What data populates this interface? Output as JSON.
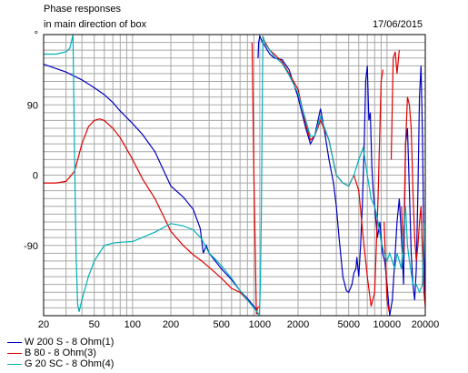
{
  "header": {
    "title_line1": "Phase responses",
    "title_line2": "in main direction of box",
    "date": "17/06/2015",
    "unit": "°"
  },
  "chart_data": {
    "type": "line",
    "x_scale": "log",
    "xlim": [
      20,
      20000
    ],
    "ylim": [
      -180,
      180
    ],
    "y_ticks": [
      {
        "value": 90,
        "label": "90"
      },
      {
        "value": 0,
        "label": "0"
      },
      {
        "value": -90,
        "label": "-90"
      }
    ],
    "x_ticks": [
      {
        "value": 20,
        "label": "20"
      },
      {
        "value": 50,
        "label": "50"
      },
      {
        "value": 100,
        "label": "100"
      },
      {
        "value": 200,
        "label": "200"
      },
      {
        "value": 500,
        "label": "500"
      },
      {
        "value": 1000,
        "label": "1000"
      },
      {
        "value": 2000,
        "label": "2000"
      },
      {
        "value": 5000,
        "label": "5000"
      },
      {
        "value": 10000,
        "label": "10000"
      },
      {
        "value": 20000,
        "label": "20000"
      }
    ],
    "grid": true,
    "legend_position": "bottom-left",
    "series": [
      {
        "name": "W 200 S - 8 Ohm(1)",
        "color": "#0000c0",
        "points": [
          [
            20,
            142
          ],
          [
            30,
            132
          ],
          [
            40,
            122
          ],
          [
            50,
            112
          ],
          [
            60,
            103
          ],
          [
            70,
            93
          ],
          [
            80,
            82
          ],
          [
            100,
            66
          ],
          [
            120,
            52
          ],
          [
            150,
            30
          ],
          [
            200,
            -14
          ],
          [
            250,
            -28
          ],
          [
            300,
            -44
          ],
          [
            340,
            -68
          ],
          [
            360,
            -100
          ],
          [
            380,
            -90
          ],
          [
            400,
            -100
          ],
          [
            500,
            -120
          ],
          [
            600,
            -134
          ],
          [
            700,
            -148
          ],
          [
            800,
            -158
          ],
          [
            900,
            -168
          ],
          [
            940,
            -172
          ],
          [
            960,
            -178
          ],
          [
            970,
            150
          ],
          [
            980,
            170
          ],
          [
            1000,
            178
          ],
          [
            1050,
            170
          ],
          [
            1100,
            165
          ],
          [
            1200,
            155
          ],
          [
            1300,
            150
          ],
          [
            1500,
            148
          ],
          [
            1700,
            135
          ],
          [
            2000,
            100
          ],
          [
            2300,
            60
          ],
          [
            2500,
            40
          ],
          [
            2700,
            50
          ],
          [
            3000,
            85
          ],
          [
            3200,
            60
          ],
          [
            3500,
            20
          ],
          [
            3800,
            -10
          ],
          [
            4000,
            -40
          ],
          [
            4200,
            -80
          ],
          [
            4500,
            -130
          ],
          [
            4800,
            -148
          ],
          [
            5000,
            -150
          ],
          [
            5300,
            -140
          ],
          [
            5500,
            -125
          ],
          [
            5700,
            -120
          ],
          [
            5800,
            -105
          ],
          [
            6000,
            -130
          ],
          [
            6200,
            -90
          ],
          [
            6400,
            -40
          ],
          [
            6600,
            30
          ],
          [
            6800,
            120
          ],
          [
            7000,
            140
          ],
          [
            7200,
            70
          ],
          [
            7400,
            80
          ],
          [
            7600,
            10
          ],
          [
            7800,
            -20
          ],
          [
            8000,
            -40
          ],
          [
            8400,
            -80
          ],
          [
            8800,
            -60
          ],
          [
            9200,
            -100
          ],
          [
            9600,
            -110
          ],
          [
            10000,
            -140
          ],
          [
            10500,
            -180
          ],
          [
            11000,
            -160
          ],
          [
            11500,
            -110
          ],
          [
            12000,
            -60
          ],
          [
            12500,
            -30
          ],
          [
            13000,
            -80
          ],
          [
            13500,
            -140
          ],
          [
            14000,
            40
          ],
          [
            14500,
            60
          ],
          [
            15000,
            -20
          ],
          [
            15500,
            -100
          ],
          [
            16000,
            -140
          ],
          [
            16500,
            -160
          ],
          [
            17000,
            -120
          ],
          [
            17500,
            -20
          ],
          [
            18000,
            100
          ],
          [
            18500,
            140
          ],
          [
            19000,
            50
          ],
          [
            19500,
            -100
          ],
          [
            20000,
            -160
          ]
        ]
      },
      {
        "name": "B 80 - 8 Ohm(3)",
        "color": "#e00000",
        "points": [
          [
            20,
            -10
          ],
          [
            25,
            -10
          ],
          [
            30,
            -8
          ],
          [
            35,
            5
          ],
          [
            40,
            40
          ],
          [
            45,
            62
          ],
          [
            50,
            70
          ],
          [
            55,
            72
          ],
          [
            60,
            70
          ],
          [
            70,
            60
          ],
          [
            80,
            48
          ],
          [
            100,
            20
          ],
          [
            120,
            -5
          ],
          [
            150,
            -30
          ],
          [
            200,
            -72
          ],
          [
            250,
            -90
          ],
          [
            300,
            -102
          ],
          [
            350,
            -110
          ],
          [
            400,
            -118
          ],
          [
            500,
            -132
          ],
          [
            600,
            -145
          ],
          [
            700,
            -150
          ],
          [
            800,
            -160
          ],
          [
            850,
            -165
          ],
          [
            870,
            170
          ],
          [
            900,
            0
          ],
          [
            920,
            -90
          ],
          [
            940,
            -178
          ],
          [
            960,
            -170
          ],
          [
            1000,
            -168
          ],
          [
            1050,
            178
          ],
          [
            1100,
            170
          ],
          [
            1200,
            160
          ],
          [
            1300,
            155
          ],
          [
            1500,
            145
          ],
          [
            1700,
            130
          ],
          [
            2000,
            110
          ],
          [
            2300,
            65
          ],
          [
            2500,
            45
          ],
          [
            2700,
            50
          ],
          [
            3000,
            70
          ],
          [
            3500,
            45
          ],
          [
            4000,
            0
          ],
          [
            4500,
            -10
          ],
          [
            5000,
            -14
          ],
          [
            5500,
            0
          ],
          [
            6000,
            -20
          ],
          [
            6500,
            -80
          ],
          [
            7000,
            -130
          ],
          [
            7500,
            -168
          ],
          [
            8000,
            -150
          ],
          [
            8500,
            -30
          ],
          [
            9000,
            120
          ],
          [
            9300,
            135
          ],
          [
            9500,
            -60
          ],
          [
            9800,
            -120
          ],
          [
            10000,
            -160
          ],
          [
            10400,
            -175
          ],
          [
            10800,
            20
          ],
          [
            11200,
            150
          ],
          [
            11600,
            158
          ],
          [
            12000,
            130
          ],
          [
            12500,
            160
          ],
          [
            13000,
            -40
          ],
          [
            13500,
            -100
          ],
          [
            14000,
            40
          ],
          [
            14500,
            100
          ],
          [
            15000,
            90
          ],
          [
            15500,
            60
          ],
          [
            16000,
            -20
          ],
          [
            16500,
            -80
          ],
          [
            17000,
            -110
          ],
          [
            17500,
            -90
          ],
          [
            18000,
            -60
          ],
          [
            18500,
            -40
          ],
          [
            19000,
            -100
          ],
          [
            19500,
            -150
          ],
          [
            20000,
            -168
          ]
        ]
      },
      {
        "name": "G 20 SC - 8 Ohm(4)",
        "color": "#00b0b8",
        "points": [
          [
            20,
            155
          ],
          [
            25,
            155
          ],
          [
            30,
            158
          ],
          [
            32,
            162
          ],
          [
            33,
            170
          ],
          [
            34,
            180
          ],
          [
            35,
            30
          ],
          [
            36,
            -100
          ],
          [
            37,
            -165
          ],
          [
            38,
            -175
          ],
          [
            40,
            -160
          ],
          [
            45,
            -130
          ],
          [
            50,
            -110
          ],
          [
            60,
            -90
          ],
          [
            70,
            -87
          ],
          [
            80,
            -86
          ],
          [
            100,
            -85
          ],
          [
            150,
            -73
          ],
          [
            200,
            -62
          ],
          [
            250,
            -65
          ],
          [
            300,
            -70
          ],
          [
            350,
            -82
          ],
          [
            400,
            -100
          ],
          [
            450,
            -108
          ],
          [
            500,
            -116
          ],
          [
            600,
            -132
          ],
          [
            700,
            -148
          ],
          [
            800,
            -160
          ],
          [
            900,
            -170
          ],
          [
            950,
            -175
          ],
          [
            980,
            -178
          ],
          [
            990,
            -180
          ],
          [
            1000,
            -165
          ],
          [
            1010,
            -140
          ],
          [
            1030,
            -40
          ],
          [
            1050,
            120
          ],
          [
            1060,
            178
          ],
          [
            1100,
            168
          ],
          [
            1200,
            160
          ],
          [
            1300,
            152
          ],
          [
            1500,
            143
          ],
          [
            1700,
            128
          ],
          [
            2000,
            105
          ],
          [
            2300,
            70
          ],
          [
            2500,
            50
          ],
          [
            2700,
            50
          ],
          [
            3000,
            75
          ],
          [
            3500,
            45
          ],
          [
            4000,
            0
          ],
          [
            4500,
            -10
          ],
          [
            5000,
            -14
          ],
          [
            5500,
            0
          ],
          [
            6000,
            20
          ],
          [
            6500,
            35
          ],
          [
            7000,
            0
          ],
          [
            7500,
            -30
          ],
          [
            8000,
            -40
          ],
          [
            8500,
            -60
          ],
          [
            9000,
            -85
          ],
          [
            9500,
            -100
          ],
          [
            10000,
            -110
          ],
          [
            10500,
            -100
          ],
          [
            11000,
            -110
          ],
          [
            11500,
            -120
          ],
          [
            12000,
            -100
          ],
          [
            12500,
            -110
          ],
          [
            13000,
            -120
          ],
          [
            13500,
            -70
          ],
          [
            14000,
            -40
          ],
          [
            14500,
            -90
          ],
          [
            15000,
            -110
          ],
          [
            16000,
            -140
          ],
          [
            17000,
            -140
          ],
          [
            18000,
            -150
          ],
          [
            19000,
            -140
          ],
          [
            19500,
            -60
          ],
          [
            20000,
            160
          ]
        ]
      }
    ]
  }
}
